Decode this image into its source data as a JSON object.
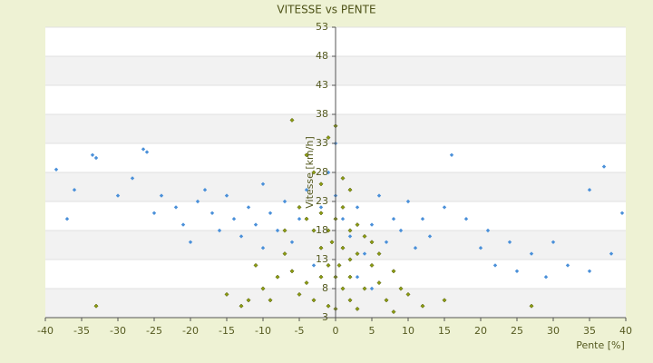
{
  "chart_data": {
    "type": "scatter",
    "title": "VITESSE vs PENTE",
    "x_label": "Pente [%]",
    "y_label": "Vitesse [km/h]",
    "xlim": [
      -40,
      40
    ],
    "xticks": [
      -40,
      -35,
      -30,
      -25,
      -20,
      -15,
      -10,
      -5,
      0,
      5,
      10,
      15,
      20,
      25,
      30,
      35,
      40
    ],
    "ylim": [
      3,
      53
    ],
    "yticks": [
      3,
      8,
      13,
      18,
      23,
      28,
      33,
      38,
      43,
      48,
      53
    ],
    "series": [
      {
        "color": "#4a90d9",
        "x": [
          -38.5,
          -36,
          -37,
          -33.5,
          -33,
          -30,
          -28,
          -26.5,
          -26,
          -25,
          -24,
          -22,
          -21,
          -20,
          -19,
          -18,
          -17,
          -16,
          -15,
          -14,
          -13,
          -12,
          -11,
          -10,
          -10,
          -9,
          -8,
          -7,
          -6,
          -5,
          -4,
          -3,
          -2,
          -1,
          0,
          0,
          1,
          2,
          3,
          4,
          5,
          6,
          7,
          8,
          9,
          10,
          11,
          12,
          13,
          15,
          16,
          18,
          20,
          21,
          22,
          24,
          25,
          27,
          29,
          30,
          32,
          35,
          35,
          37,
          38,
          39.5,
          3,
          5,
          -3
        ],
        "values": [
          28.5,
          25,
          20,
          31,
          30.5,
          24,
          27,
          32,
          31.5,
          21,
          24,
          22,
          19,
          16,
          23,
          25,
          21,
          18,
          24,
          20,
          17,
          22,
          19,
          15,
          26,
          21,
          18,
          23,
          16,
          20,
          25,
          18,
          22,
          28,
          33,
          24,
          20,
          17,
          22,
          14,
          19,
          24,
          16,
          20,
          18,
          23,
          15,
          20,
          17,
          22,
          31,
          20,
          15,
          18,
          12,
          16,
          11,
          14,
          10,
          16,
          12,
          25,
          11,
          29,
          14,
          21,
          10,
          8,
          12
        ]
      },
      {
        "color": "#8c9c12",
        "x": [
          -6,
          -4,
          -3,
          -2,
          -1,
          0,
          1,
          2,
          -5,
          -4,
          -3,
          -2,
          -1,
          0,
          1,
          2,
          3,
          4,
          5,
          6,
          7,
          8,
          9,
          10,
          -7,
          -8,
          -9,
          -10,
          -12,
          -13,
          -15,
          -3,
          -1,
          0,
          2,
          3,
          4,
          1,
          -2,
          -1,
          0,
          1,
          2,
          -4,
          -6,
          -5,
          6,
          12,
          15,
          27,
          -33,
          -0.5,
          0.5,
          3,
          -11,
          -7,
          5,
          8,
          -2,
          2
        ],
        "values": [
          37,
          31,
          28,
          26,
          34,
          36,
          27,
          25,
          22,
          20,
          18,
          15,
          12,
          10,
          8,
          6,
          14,
          17,
          12,
          9,
          6,
          11,
          8,
          7,
          14,
          10,
          6,
          8,
          6,
          5,
          7,
          6,
          5,
          4.5,
          10,
          19,
          8,
          15,
          21,
          18,
          20,
          22,
          13,
          9,
          11,
          7,
          14,
          5,
          6,
          5,
          5,
          16,
          12,
          4.5,
          12,
          18,
          16,
          4,
          10,
          18
        ]
      }
    ]
  }
}
